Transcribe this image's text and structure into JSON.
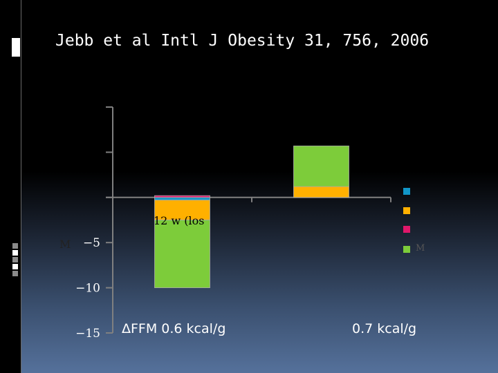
{
  "slide": {
    "title": "Jebb et al Intl J Obesity 31, 756, 2006",
    "category_fragment": "12 w (los",
    "axis_fragment": "M",
    "legend_fragment": "M",
    "annotations": [
      "ΔFFM   0.6 kcal/g",
      "0.7 kcal/g"
    ]
  },
  "colors": {
    "blue": "#1196c8",
    "orange": "#ffb000",
    "magenta": "#e0176a",
    "green": "#7dcc3a",
    "axis": "#808080"
  },
  "chart_data": {
    "type": "bar",
    "stacked": true,
    "categories": [
      "12 w (los",
      ""
    ],
    "yticks": [
      -15,
      -10,
      -5
    ],
    "ylim": [
      -15,
      10
    ],
    "grid": false,
    "legend_position": "right",
    "series": [
      {
        "color_key": "blue",
        "values": [
          -0.3,
          0.0
        ]
      },
      {
        "color_key": "orange",
        "values": [
          -2.2,
          1.2
        ]
      },
      {
        "color_key": "magenta",
        "values": [
          0.2,
          0.0
        ]
      },
      {
        "color_key": "green",
        "values": [
          -7.5,
          4.5
        ]
      }
    ]
  }
}
